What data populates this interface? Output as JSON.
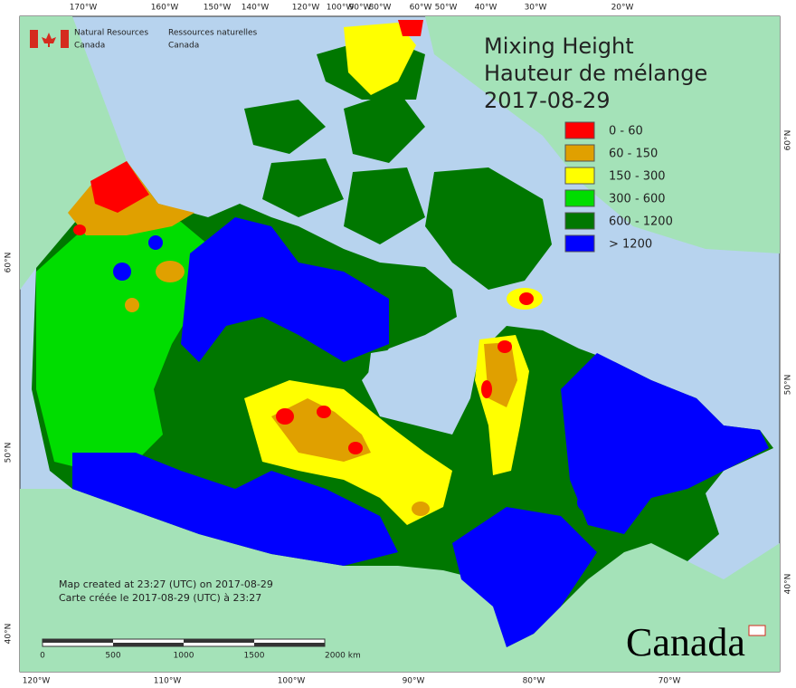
{
  "header": {
    "agency_en": [
      "Natural Resources",
      "Canada"
    ],
    "agency_fr": [
      "Ressources naturelles",
      "Canada"
    ]
  },
  "title": [
    "Mixing Height",
    "Hauteur de mélange",
    "2017-08-29"
  ],
  "legend": [
    {
      "label": "0 - 60",
      "color": "#ff0000"
    },
    {
      "label": "60 - 150",
      "color": "#e0a000"
    },
    {
      "label": "150 - 300",
      "color": "#ffff00"
    },
    {
      "label": "300 - 600",
      "color": "#00dd00"
    },
    {
      "label": "600 - 1200",
      "color": "#007700"
    },
    {
      "label": "> 1200",
      "color": "#0000ff"
    }
  ],
  "footer": [
    "Map created at 23:27 (UTC) on 2017-08-29",
    "Carte créée le 2017-08-29 (UTC) à 23:27"
  ],
  "scale_bar": [
    "0",
    "500",
    "1000",
    "1500",
    "2000 km"
  ],
  "top_labels": [
    "170°W",
    "160°W",
    "150°W",
    "140°W",
    "120°W",
    "100°W",
    "90°W",
    "80°W",
    "60°W",
    "50°W",
    "40°W",
    "30°W",
    "20°W"
  ],
  "bottom_labels": [
    "120°W",
    "110°W",
    "100°W",
    "90°W",
    "80°W",
    "70°W"
  ],
  "left_labels": [
    "60°N",
    "50°N",
    "40°N"
  ],
  "right_labels": [
    "60°N",
    "50°N",
    "40°N"
  ],
  "wordmark": "Canada"
}
